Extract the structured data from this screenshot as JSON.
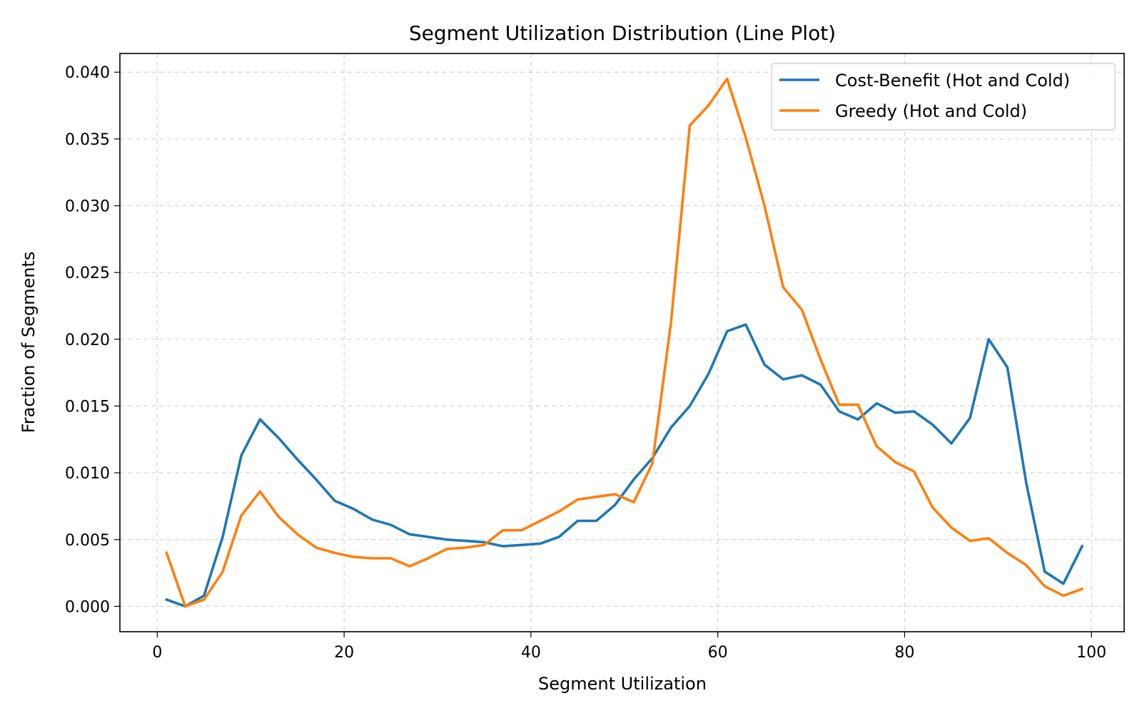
{
  "chart_data": {
    "type": "line",
    "title": "Segment Utilization Distribution (Line Plot)",
    "xlabel": "Segment Utilization",
    "ylabel": "Fraction of Segments",
    "xlim": [
      -4,
      103.5
    ],
    "ylim": [
      -0.0019,
      0.0414
    ],
    "xticks": [
      0,
      20,
      40,
      60,
      80,
      100
    ],
    "xtick_labels": [
      "0",
      "20",
      "40",
      "60",
      "80",
      "100"
    ],
    "yticks": [
      0.0,
      0.005,
      0.01,
      0.015,
      0.02,
      0.025,
      0.03,
      0.035,
      0.04
    ],
    "ytick_labels": [
      "0.000",
      "0.005",
      "0.010",
      "0.015",
      "0.020",
      "0.025",
      "0.030",
      "0.035",
      "0.040"
    ],
    "grid": true,
    "legend_position": "top-right",
    "x": [
      1,
      3,
      5,
      7,
      9,
      11,
      13,
      15,
      17,
      19,
      21,
      23,
      25,
      27,
      29,
      31,
      33,
      35,
      37,
      39,
      41,
      43,
      45,
      47,
      49,
      51,
      53,
      55,
      57,
      59,
      61,
      63,
      65,
      67,
      69,
      71,
      73,
      75,
      77,
      79,
      81,
      83,
      85,
      87,
      89,
      91,
      93,
      95,
      97,
      99
    ],
    "series": [
      {
        "name": "Cost-Benefit (Hot and Cold)",
        "color": "#1f77b4",
        "values": [
          0.0005,
          0.0,
          0.0008,
          0.0052,
          0.0113,
          0.014,
          0.0126,
          0.011,
          0.0095,
          0.0079,
          0.0073,
          0.0065,
          0.0061,
          0.0054,
          0.0052,
          0.005,
          0.0049,
          0.0048,
          0.0045,
          0.0046,
          0.0047,
          0.0052,
          0.0064,
          0.0064,
          0.0076,
          0.0095,
          0.0111,
          0.0134,
          0.015,
          0.0174,
          0.0206,
          0.0211,
          0.0181,
          0.017,
          0.0173,
          0.0166,
          0.0146,
          0.014,
          0.0152,
          0.0145,
          0.0146,
          0.0136,
          0.0122,
          0.0141,
          0.02,
          0.0179,
          0.0093,
          0.0026,
          0.0017,
          0.0045
        ]
      },
      {
        "name": "Greedy (Hot and Cold)",
        "color": "#ff7f0e",
        "values": [
          0.004,
          0.0,
          0.0005,
          0.0026,
          0.0068,
          0.0086,
          0.0067,
          0.0054,
          0.0044,
          0.004,
          0.0037,
          0.0036,
          0.0036,
          0.003,
          0.0036,
          0.0043,
          0.0044,
          0.0046,
          0.0057,
          0.0057,
          0.0064,
          0.0071,
          0.008,
          0.0082,
          0.0084,
          0.0078,
          0.0107,
          0.0213,
          0.036,
          0.0375,
          0.0395,
          0.0351,
          0.03,
          0.0239,
          0.0222,
          0.0185,
          0.0151,
          0.0151,
          0.012,
          0.0108,
          0.0101,
          0.0074,
          0.0059,
          0.0049,
          0.0051,
          0.004,
          0.0031,
          0.0015,
          0.0008,
          0.0013
        ]
      }
    ]
  }
}
